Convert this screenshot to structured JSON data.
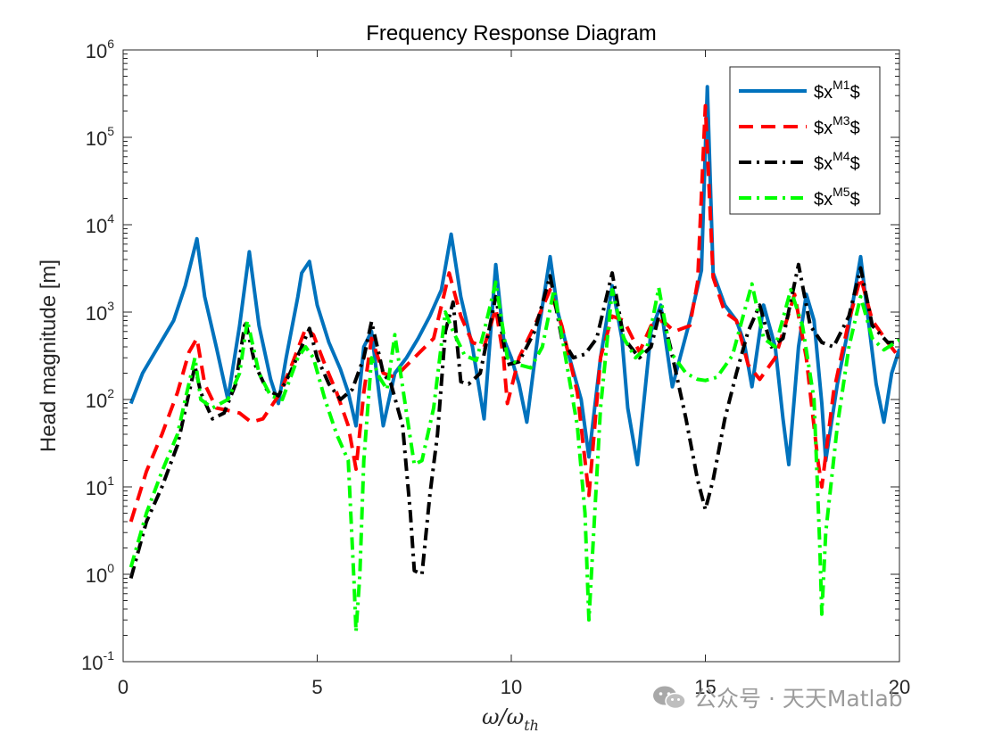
{
  "chart_data": {
    "type": "line",
    "title": "Frequency Response Diagram",
    "xlabel": "ω/ω_th",
    "xlabel_parts": {
      "main": "ω/ω",
      "sub": "th"
    },
    "ylabel": "Head magnitude [m]",
    "xlim": [
      0,
      20
    ],
    "ylim": [
      0.1,
      1000000
    ],
    "yscale": "log",
    "x_ticks": [
      "0",
      "5",
      "10",
      "15",
      "20"
    ],
    "y_ticks": [
      {
        "base": "10",
        "exp": "-1"
      },
      {
        "base": "10",
        "exp": "0"
      },
      {
        "base": "10",
        "exp": "1"
      },
      {
        "base": "10",
        "exp": "2"
      },
      {
        "base": "10",
        "exp": "3"
      },
      {
        "base": "10",
        "exp": "4"
      },
      {
        "base": "10",
        "exp": "5"
      },
      {
        "base": "10",
        "exp": "6"
      }
    ],
    "grid": false,
    "legend_position": "top-right",
    "series": [
      {
        "name": "$x^{M1}$",
        "label_base": "$x",
        "label_sup": "M1",
        "label_tail": "$",
        "color": "#0072BD",
        "style": "solid",
        "points": [
          [
            0.2,
            90
          ],
          [
            0.5,
            200
          ],
          [
            0.9,
            400
          ],
          [
            1.3,
            800
          ],
          [
            1.6,
            2000
          ],
          [
            1.9,
            6900
          ],
          [
            2.1,
            1500
          ],
          [
            2.4,
            400
          ],
          [
            2.7,
            100
          ],
          [
            3.0,
            700
          ],
          [
            3.25,
            4900
          ],
          [
            3.5,
            700
          ],
          [
            3.8,
            170
          ],
          [
            4.0,
            90
          ],
          [
            4.2,
            300
          ],
          [
            4.5,
            1500
          ],
          [
            4.6,
            2800
          ],
          [
            4.8,
            3800
          ],
          [
            5.0,
            1200
          ],
          [
            5.3,
            450
          ],
          [
            5.6,
            220
          ],
          [
            5.8,
            120
          ],
          [
            6.0,
            50
          ],
          [
            6.2,
            400
          ],
          [
            6.4,
            600
          ],
          [
            6.6,
            110
          ],
          [
            6.7,
            50
          ],
          [
            7.0,
            200
          ],
          [
            7.3,
            300
          ],
          [
            7.6,
            500
          ],
          [
            7.9,
            900
          ],
          [
            8.2,
            1800
          ],
          [
            8.45,
            7800
          ],
          [
            8.7,
            1500
          ],
          [
            9.0,
            400
          ],
          [
            9.3,
            60
          ],
          [
            9.6,
            3500
          ],
          [
            9.8,
            500
          ],
          [
            10.0,
            300
          ],
          [
            10.2,
            150
          ],
          [
            10.4,
            55
          ],
          [
            10.7,
            600
          ],
          [
            11.0,
            4300
          ],
          [
            11.2,
            1000
          ],
          [
            11.5,
            300
          ],
          [
            11.8,
            100
          ],
          [
            12.0,
            22
          ],
          [
            12.3,
            300
          ],
          [
            12.6,
            2000
          ],
          [
            12.85,
            500
          ],
          [
            13.0,
            80
          ],
          [
            13.25,
            18
          ],
          [
            13.6,
            600
          ],
          [
            13.85,
            1200
          ],
          [
            14.0,
            400
          ],
          [
            14.15,
            140
          ],
          [
            14.6,
            800
          ],
          [
            14.9,
            3000
          ],
          [
            15.05,
            380000
          ],
          [
            15.2,
            2800
          ],
          [
            15.5,
            1200
          ],
          [
            15.8,
            800
          ],
          [
            16.0,
            450
          ],
          [
            16.2,
            140
          ],
          [
            16.5,
            1200
          ],
          [
            16.8,
            400
          ],
          [
            17.0,
            60
          ],
          [
            17.15,
            18
          ],
          [
            17.4,
            400
          ],
          [
            17.6,
            1600
          ],
          [
            17.8,
            800
          ],
          [
            18.0,
            90
          ],
          [
            18.1,
            20
          ],
          [
            18.4,
            150
          ],
          [
            18.7,
            700
          ],
          [
            19.0,
            4300
          ],
          [
            19.2,
            800
          ],
          [
            19.4,
            150
          ],
          [
            19.6,
            55
          ],
          [
            19.8,
            200
          ],
          [
            20.0,
            380
          ]
        ]
      },
      {
        "name": "$x^{M3}$",
        "label_base": "$x",
        "label_sup": "M3",
        "label_tail": "$",
        "color": "#FF0000",
        "style": "dashed",
        "points": [
          [
            0.2,
            4
          ],
          [
            0.6,
            15
          ],
          [
            1.0,
            40
          ],
          [
            1.4,
            120
          ],
          [
            1.7,
            350
          ],
          [
            1.9,
            500
          ],
          [
            2.1,
            150
          ],
          [
            2.4,
            80
          ],
          [
            2.7,
            75
          ],
          [
            3.0,
            70
          ],
          [
            3.3,
            55
          ],
          [
            3.6,
            60
          ],
          [
            4.0,
            110
          ],
          [
            4.3,
            220
          ],
          [
            4.7,
            650
          ],
          [
            4.9,
            550
          ],
          [
            5.2,
            250
          ],
          [
            5.5,
            120
          ],
          [
            5.8,
            50
          ],
          [
            6.0,
            16
          ],
          [
            6.2,
            120
          ],
          [
            6.4,
            500
          ],
          [
            6.7,
            200
          ],
          [
            7.0,
            180
          ],
          [
            7.5,
            300
          ],
          [
            8.0,
            500
          ],
          [
            8.4,
            2800
          ],
          [
            8.7,
            900
          ],
          [
            9.0,
            450
          ],
          [
            9.3,
            400
          ],
          [
            9.6,
            1100
          ],
          [
            9.8,
            300
          ],
          [
            9.9,
            90
          ],
          [
            10.2,
            300
          ],
          [
            10.6,
            700
          ],
          [
            11.0,
            1800
          ],
          [
            11.3,
            700
          ],
          [
            11.7,
            120
          ],
          [
            12.0,
            8
          ],
          [
            12.3,
            300
          ],
          [
            12.6,
            900
          ],
          [
            12.9,
            800
          ],
          [
            13.3,
            350
          ],
          [
            13.6,
            700
          ],
          [
            13.9,
            800
          ],
          [
            14.2,
            600
          ],
          [
            14.6,
            700
          ],
          [
            14.8,
            2200
          ],
          [
            15.0,
            230000
          ],
          [
            15.2,
            2500
          ],
          [
            15.5,
            1000
          ],
          [
            15.8,
            800
          ],
          [
            16.1,
            250
          ],
          [
            16.4,
            170
          ],
          [
            16.8,
            300
          ],
          [
            17.3,
            1600
          ],
          [
            17.6,
            300
          ],
          [
            17.9,
            20
          ],
          [
            18.0,
            10
          ],
          [
            18.3,
            120
          ],
          [
            18.7,
            800
          ],
          [
            19.0,
            2500
          ],
          [
            19.3,
            800
          ],
          [
            19.7,
            450
          ],
          [
            20.0,
            300
          ]
        ]
      },
      {
        "name": "$x^{M4}$",
        "label_base": "$x",
        "label_sup": "M4",
        "label_tail": "$",
        "color": "#000000",
        "style": "dashdot",
        "points": [
          [
            0.2,
            0.9
          ],
          [
            0.6,
            4
          ],
          [
            1.0,
            10
          ],
          [
            1.4,
            30
          ],
          [
            1.7,
            120
          ],
          [
            1.85,
            240
          ],
          [
            2.0,
            120
          ],
          [
            2.3,
            60
          ],
          [
            2.6,
            70
          ],
          [
            2.9,
            150
          ],
          [
            3.15,
            800
          ],
          [
            3.4,
            250
          ],
          [
            3.7,
            130
          ],
          [
            4.0,
            110
          ],
          [
            4.3,
            200
          ],
          [
            4.6,
            400
          ],
          [
            4.8,
            650
          ],
          [
            5.0,
            300
          ],
          [
            5.3,
            150
          ],
          [
            5.6,
            100
          ],
          [
            5.9,
            130
          ],
          [
            6.2,
            300
          ],
          [
            6.4,
            780
          ],
          [
            6.7,
            200
          ],
          [
            6.9,
            150
          ],
          [
            7.2,
            50
          ],
          [
            7.4,
            5
          ],
          [
            7.5,
            1.1
          ],
          [
            7.7,
            1.0
          ],
          [
            7.9,
            8
          ],
          [
            8.1,
            40
          ],
          [
            8.3,
            600
          ],
          [
            8.5,
            1300
          ],
          [
            8.7,
            160
          ],
          [
            8.9,
            150
          ],
          [
            9.2,
            200
          ],
          [
            9.6,
            1500
          ],
          [
            9.9,
            250
          ],
          [
            10.2,
            270
          ],
          [
            10.6,
            600
          ],
          [
            11.0,
            2600
          ],
          [
            11.3,
            500
          ],
          [
            11.6,
            300
          ],
          [
            11.9,
            330
          ],
          [
            12.2,
            500
          ],
          [
            12.6,
            2800
          ],
          [
            12.9,
            500
          ],
          [
            13.3,
            300
          ],
          [
            13.6,
            400
          ],
          [
            13.85,
            1100
          ],
          [
            14.1,
            400
          ],
          [
            14.5,
            60
          ],
          [
            14.8,
            12
          ],
          [
            15.0,
            5.5
          ],
          [
            15.2,
            12
          ],
          [
            15.5,
            60
          ],
          [
            15.8,
            200
          ],
          [
            16.1,
            600
          ],
          [
            16.4,
            1200
          ],
          [
            16.7,
            400
          ],
          [
            17.0,
            500
          ],
          [
            17.4,
            3500
          ],
          [
            17.7,
            700
          ],
          [
            18.0,
            450
          ],
          [
            18.3,
            400
          ],
          [
            18.7,
            900
          ],
          [
            19.0,
            3200
          ],
          [
            19.3,
            700
          ],
          [
            19.7,
            450
          ],
          [
            20.0,
            450
          ]
        ]
      },
      {
        "name": "$x^{M5}$",
        "label_base": "$x",
        "label_sup": "M5",
        "label_tail": "$",
        "color": "#00FF00",
        "style": "dashdot",
        "points": [
          [
            0.2,
            1.2
          ],
          [
            0.6,
            5
          ],
          [
            1.0,
            15
          ],
          [
            1.4,
            40
          ],
          [
            1.6,
            100
          ],
          [
            1.85,
            300
          ],
          [
            2.0,
            100
          ],
          [
            2.3,
            80
          ],
          [
            2.7,
            100
          ],
          [
            3.0,
            200
          ],
          [
            3.2,
            800
          ],
          [
            3.5,
            200
          ],
          [
            3.8,
            110
          ],
          [
            4.1,
            100
          ],
          [
            4.5,
            300
          ],
          [
            4.7,
            400
          ],
          [
            4.9,
            300
          ],
          [
            5.2,
            100
          ],
          [
            5.5,
            40
          ],
          [
            5.8,
            20
          ],
          [
            5.95,
            0.8
          ],
          [
            6.0,
            0.22
          ],
          [
            6.1,
            1.0
          ],
          [
            6.2,
            20
          ],
          [
            6.4,
            300
          ],
          [
            6.6,
            180
          ],
          [
            6.8,
            130
          ],
          [
            7.0,
            550
          ],
          [
            7.3,
            70
          ],
          [
            7.5,
            18
          ],
          [
            7.7,
            20
          ],
          [
            8.0,
            80
          ],
          [
            8.3,
            1000
          ],
          [
            8.5,
            600
          ],
          [
            8.8,
            320
          ],
          [
            9.1,
            280
          ],
          [
            9.3,
            600
          ],
          [
            9.6,
            2200
          ],
          [
            9.9,
            300
          ],
          [
            10.2,
            250
          ],
          [
            10.5,
            230
          ],
          [
            10.8,
            400
          ],
          [
            11.1,
            1800
          ],
          [
            11.4,
            300
          ],
          [
            11.7,
            50
          ],
          [
            11.9,
            5
          ],
          [
            12.0,
            0.3
          ],
          [
            12.1,
            2
          ],
          [
            12.3,
            80
          ],
          [
            12.6,
            1800
          ],
          [
            12.9,
            500
          ],
          [
            13.2,
            300
          ],
          [
            13.5,
            400
          ],
          [
            13.8,
            1900
          ],
          [
            14.1,
            350
          ],
          [
            14.5,
            200
          ],
          [
            14.8,
            170
          ],
          [
            15.0,
            165
          ],
          [
            15.3,
            180
          ],
          [
            15.7,
            320
          ],
          [
            16.0,
            1000
          ],
          [
            16.2,
            2100
          ],
          [
            16.5,
            500
          ],
          [
            16.8,
            400
          ],
          [
            17.2,
            1800
          ],
          [
            17.5,
            700
          ],
          [
            17.8,
            100
          ],
          [
            17.95,
            2
          ],
          [
            18.0,
            0.35
          ],
          [
            18.1,
            3
          ],
          [
            18.4,
            50
          ],
          [
            18.7,
            400
          ],
          [
            19.0,
            1500
          ],
          [
            19.3,
            500
          ],
          [
            19.6,
            370
          ],
          [
            20.0,
            480
          ]
        ]
      }
    ]
  },
  "watermark": {
    "icon": "wechat-icon",
    "text": "公众号 · 天天Matlab"
  }
}
